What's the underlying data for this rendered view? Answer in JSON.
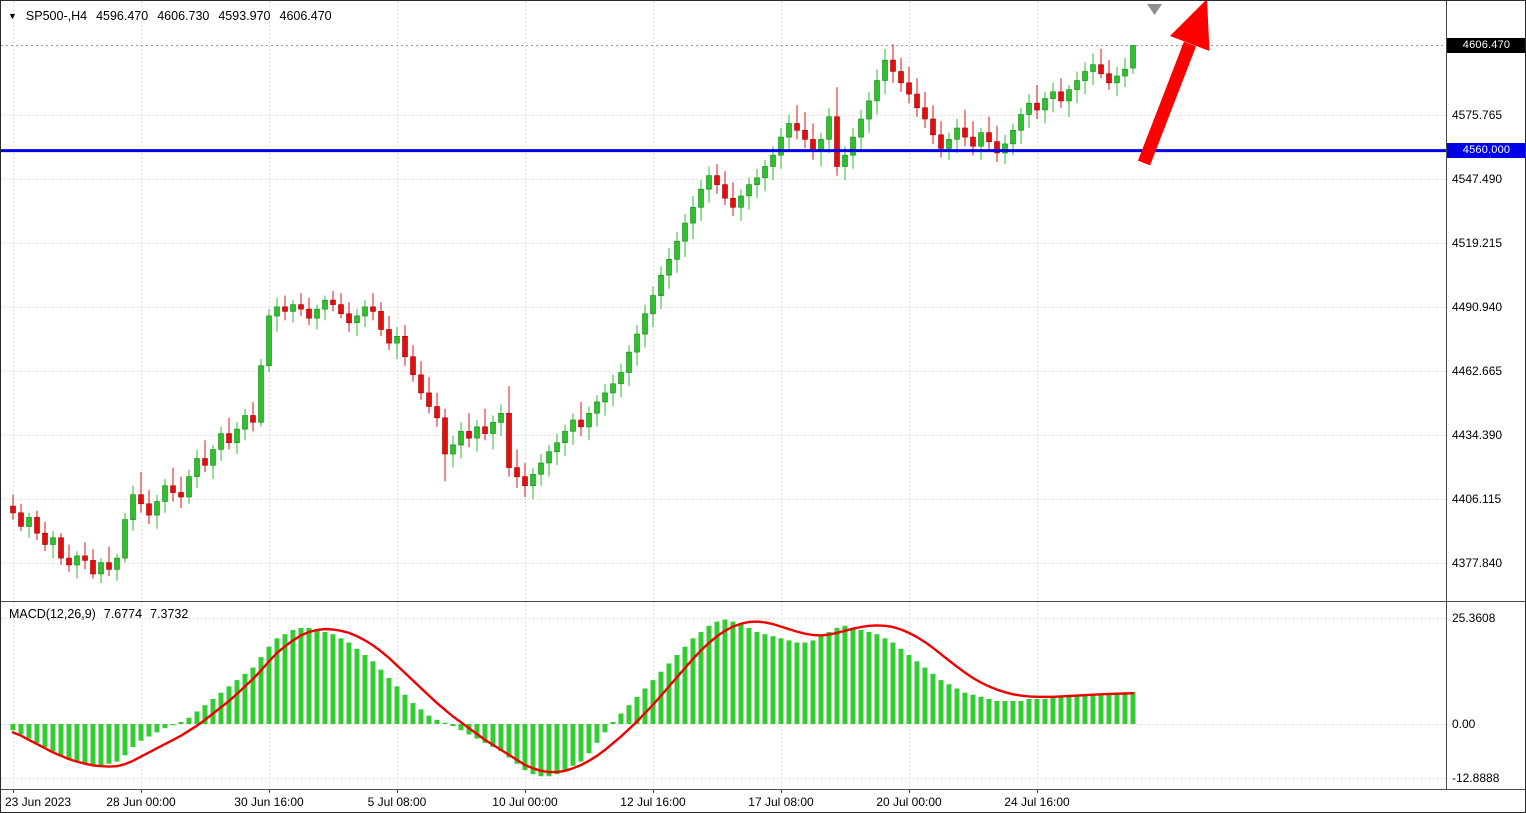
{
  "symbol_info": {
    "marker_icon": "▼",
    "symbol_tf": "SP500-,H4",
    "open": "4596.470",
    "high": "4606.730",
    "low": "4593.970",
    "close": "4606.470"
  },
  "macd_info": {
    "label": "MACD(12,26,9)",
    "value_main": "7.6774",
    "value_signal": "7.3732"
  },
  "price_tags": {
    "current": "4606.470",
    "level": "4560.000"
  },
  "colors": {
    "bull": "#2fbf2f",
    "bull_stroke": "#118811",
    "bear": "#e01010",
    "bear_stroke": "#a00000",
    "macd_hist": "#33cc33",
    "macd_signal": "#ee0000",
    "level_line": "#0000e6",
    "level_tag_bg": "#0000e6",
    "current_tag_bg": "#000000",
    "grid": "#c9c9c9",
    "arrow": "#ff0000",
    "axis_text": "#000000"
  },
  "chart_data": {
    "type": "candlestick",
    "symbol": "SP500-",
    "timeframe": "H4",
    "title": "SP500-,H4 4596.470 4606.730 4593.970 4606.470",
    "current_price": 4606.47,
    "horizontal_line": 4560.0,
    "price_gridlines": [
      4575.765,
      4547.49,
      4519.215,
      4490.94,
      4462.665,
      4434.39,
      4406.115,
      4377.84
    ],
    "time_labels": [
      {
        "bar": 0,
        "label": "23 Jun 2023"
      },
      {
        "bar": 16,
        "label": "28 Jun 00:00"
      },
      {
        "bar": 32,
        "label": "30 Jun 16:00"
      },
      {
        "bar": 48,
        "label": "5 Jul 08:00"
      },
      {
        "bar": 64,
        "label": "10 Jul 00:00"
      },
      {
        "bar": 80,
        "label": "12 Jul 16:00"
      },
      {
        "bar": 96,
        "label": "17 Jul 08:00"
      },
      {
        "bar": 112,
        "label": "20 Jul 00:00"
      },
      {
        "bar": 128,
        "label": "24 Jul 16:00"
      }
    ],
    "candles": [
      [
        4403,
        4408,
        4397,
        4400
      ],
      [
        4400,
        4404,
        4392,
        4394
      ],
      [
        4394,
        4400,
        4389,
        4398
      ],
      [
        4398,
        4401,
        4388,
        4391
      ],
      [
        4391,
        4396,
        4383,
        4386
      ],
      [
        4386,
        4392,
        4380,
        4389
      ],
      [
        4389,
        4391,
        4377,
        4380
      ],
      [
        4380,
        4386,
        4374,
        4377
      ],
      [
        4377,
        4383,
        4371,
        4381
      ],
      [
        4381,
        4387,
        4375,
        4379
      ],
      [
        4379,
        4384,
        4371,
        4373
      ],
      [
        4373,
        4380,
        4369,
        4378
      ],
      [
        4378,
        4385,
        4372,
        4375
      ],
      [
        4375,
        4382,
        4370,
        4380
      ],
      [
        4380,
        4400,
        4378,
        4397
      ],
      [
        4397,
        4412,
        4392,
        4408
      ],
      [
        4408,
        4418,
        4400,
        4404
      ],
      [
        4404,
        4410,
        4395,
        4399
      ],
      [
        4399,
        4408,
        4393,
        4405
      ],
      [
        4405,
        4415,
        4400,
        4412
      ],
      [
        4412,
        4420,
        4405,
        4409
      ],
      [
        4409,
        4416,
        4402,
        4407
      ],
      [
        4407,
        4419,
        4404,
        4416
      ],
      [
        4416,
        4428,
        4411,
        4424
      ],
      [
        4424,
        4432,
        4418,
        4421
      ],
      [
        4421,
        4430,
        4415,
        4428
      ],
      [
        4428,
        4438,
        4423,
        4435
      ],
      [
        4435,
        4442,
        4428,
        4431
      ],
      [
        4431,
        4440,
        4426,
        4437
      ],
      [
        4437,
        4446,
        4432,
        4443
      ],
      [
        4443,
        4449,
        4436,
        4440
      ],
      [
        4440,
        4468,
        4438,
        4465
      ],
      [
        4465,
        4490,
        4462,
        4487
      ],
      [
        4487,
        4495,
        4480,
        4491
      ],
      [
        4491,
        4496,
        4485,
        4489
      ],
      [
        4489,
        4494,
        4484,
        4492
      ],
      [
        4492,
        4497,
        4487,
        4490
      ],
      [
        4490,
        4495,
        4483,
        4486
      ],
      [
        4486,
        4492,
        4481,
        4490
      ],
      [
        4490,
        4496,
        4485,
        4494
      ],
      [
        4494,
        4498,
        4489,
        4492
      ],
      [
        4492,
        4497,
        4486,
        4488
      ],
      [
        4488,
        4493,
        4480,
        4484
      ],
      [
        4484,
        4490,
        4478,
        4487
      ],
      [
        4487,
        4494,
        4482,
        4491
      ],
      [
        4491,
        4497,
        4485,
        4489
      ],
      [
        4489,
        4493,
        4478,
        4481
      ],
      [
        4481,
        4487,
        4472,
        4475
      ],
      [
        4475,
        4482,
        4468,
        4478
      ],
      [
        4478,
        4483,
        4465,
        4469
      ],
      [
        4469,
        4474,
        4458,
        4461
      ],
      [
        4461,
        4467,
        4450,
        4453
      ],
      [
        4453,
        4460,
        4444,
        4447
      ],
      [
        4447,
        4453,
        4438,
        4442
      ],
      [
        4442,
        4446,
        4414,
        4426
      ],
      [
        4426,
        4434,
        4420,
        4430
      ],
      [
        4430,
        4440,
        4424,
        4436
      ],
      [
        4436,
        4444,
        4429,
        4433
      ],
      [
        4433,
        4441,
        4427,
        4438
      ],
      [
        4438,
        4446,
        4432,
        4435
      ],
      [
        4435,
        4443,
        4428,
        4440
      ],
      [
        4440,
        4448,
        4434,
        4444
      ],
      [
        4444,
        4456,
        4416,
        4420
      ],
      [
        4420,
        4428,
        4411,
        4416
      ],
      [
        4416,
        4422,
        4407,
        4412
      ],
      [
        4412,
        4420,
        4406,
        4417
      ],
      [
        4417,
        4426,
        4412,
        4422
      ],
      [
        4422,
        4430,
        4416,
        4427
      ],
      [
        4427,
        4435,
        4421,
        4431
      ],
      [
        4431,
        4439,
        4425,
        4436
      ],
      [
        4436,
        4444,
        4430,
        4441
      ],
      [
        4441,
        4449,
        4434,
        4438
      ],
      [
        4438,
        4447,
        4432,
        4444
      ],
      [
        4444,
        4452,
        4438,
        4449
      ],
      [
        4449,
        4457,
        4443,
        4453
      ],
      [
        4453,
        4461,
        4447,
        4457
      ],
      [
        4457,
        4466,
        4451,
        4462
      ],
      [
        4462,
        4474,
        4456,
        4471
      ],
      [
        4471,
        4483,
        4465,
        4479
      ],
      [
        4479,
        4492,
        4473,
        4488
      ],
      [
        4488,
        4500,
        4482,
        4496
      ],
      [
        4496,
        4509,
        4490,
        4505
      ],
      [
        4505,
        4517,
        4499,
        4512
      ],
      [
        4512,
        4524,
        4506,
        4520
      ],
      [
        4520,
        4532,
        4513,
        4528
      ],
      [
        4528,
        4540,
        4521,
        4535
      ],
      [
        4535,
        4547,
        4529,
        4543
      ],
      [
        4543,
        4553,
        4537,
        4549
      ],
      [
        4549,
        4554,
        4541,
        4545
      ],
      [
        4545,
        4551,
        4536,
        4539
      ],
      [
        4539,
        4546,
        4531,
        4535
      ],
      [
        4535,
        4543,
        4529,
        4540
      ],
      [
        4540,
        4548,
        4534,
        4545
      ],
      [
        4545,
        4552,
        4539,
        4548
      ],
      [
        4548,
        4556,
        4542,
        4553
      ],
      [
        4553,
        4562,
        4547,
        4558
      ],
      [
        4558,
        4570,
        4552,
        4566
      ],
      [
        4566,
        4576,
        4560,
        4572
      ],
      [
        4572,
        4580,
        4565,
        4569
      ],
      [
        4569,
        4577,
        4561,
        4565
      ],
      [
        4565,
        4572,
        4556,
        4560
      ],
      [
        4560,
        4568,
        4553,
        4565
      ],
      [
        4565,
        4579,
        4559,
        4575
      ],
      [
        4575,
        4588,
        4549,
        4553
      ],
      [
        4553,
        4562,
        4547,
        4558
      ],
      [
        4558,
        4570,
        4552,
        4566
      ],
      [
        4566,
        4578,
        4560,
        4574
      ],
      [
        4574,
        4586,
        4568,
        4582
      ],
      [
        4582,
        4596,
        4576,
        4591
      ],
      [
        4591,
        4605,
        4585,
        4600
      ],
      [
        4600,
        4607,
        4590,
        4595
      ],
      [
        4595,
        4601,
        4586,
        4590
      ],
      [
        4590,
        4597,
        4581,
        4585
      ],
      [
        4585,
        4592,
        4575,
        4579
      ],
      [
        4579,
        4586,
        4570,
        4574
      ],
      [
        4574,
        4580,
        4563,
        4567
      ],
      [
        4567,
        4573,
        4557,
        4561
      ],
      [
        4561,
        4568,
        4556,
        4565
      ],
      [
        4565,
        4574,
        4559,
        4570
      ],
      [
        4570,
        4578,
        4562,
        4566
      ],
      [
        4566,
        4573,
        4558,
        4562
      ],
      [
        4562,
        4570,
        4556,
        4568
      ],
      [
        4568,
        4575,
        4560,
        4564
      ],
      [
        4564,
        4571,
        4555,
        4559
      ],
      [
        4559,
        4567,
        4554,
        4563
      ],
      [
        4563,
        4572,
        4558,
        4569
      ],
      [
        4569,
        4579,
        4563,
        4576
      ],
      [
        4576,
        4585,
        4570,
        4581
      ],
      [
        4581,
        4589,
        4574,
        4578
      ],
      [
        4578,
        4586,
        4572,
        4583
      ],
      [
        4583,
        4590,
        4577,
        4586
      ],
      [
        4586,
        4592,
        4579,
        4582
      ],
      [
        4582,
        4589,
        4575,
        4587
      ],
      [
        4587,
        4595,
        4581,
        4591
      ],
      [
        4591,
        4599,
        4585,
        4595
      ],
      [
        4595,
        4603,
        4589,
        4598
      ],
      [
        4598,
        4605,
        4592,
        4594
      ],
      [
        4594,
        4600,
        4587,
        4590
      ],
      [
        4590,
        4597,
        4584,
        4593
      ],
      [
        4593,
        4601,
        4588,
        4596
      ],
      [
        4596.47,
        4606.73,
        4593.97,
        4606.47
      ]
    ],
    "macd": {
      "params": "12,26,9",
      "main_value": 7.6774,
      "signal_value": 7.3732,
      "axis_ticks": [
        {
          "v": 25.3608,
          "label": "25.3608"
        },
        {
          "v": 0,
          "label": "0.00"
        },
        {
          "v": -12.8888,
          "label": "-12.8888"
        }
      ],
      "histogram": [
        -1.5,
        -2.5,
        -3.5,
        -4.5,
        -5.5,
        -6.5,
        -7.5,
        -8.5,
        -9,
        -9.5,
        -10,
        -10,
        -9.5,
        -9,
        -7.5,
        -5.5,
        -4,
        -3,
        -2,
        -1,
        -0.3,
        0.5,
        1.5,
        3,
        4.5,
        6,
        7.5,
        9,
        10.5,
        12,
        13.5,
        16,
        18.5,
        20.5,
        21.5,
        22.5,
        23,
        23,
        22.5,
        22,
        21.5,
        20.5,
        19.5,
        18,
        16.5,
        15,
        13,
        11,
        9,
        7,
        5,
        3.5,
        2,
        1,
        0.3,
        -0.5,
        -1.5,
        -2.5,
        -3.5,
        -4.5,
        -5.5,
        -6.5,
        -8,
        -9.5,
        -11,
        -12,
        -12.5,
        -12.5,
        -12,
        -11,
        -10,
        -9,
        -7,
        -4.5,
        -2,
        0.5,
        2.5,
        4.5,
        6.5,
        8.5,
        10.5,
        12.5,
        14.5,
        16.5,
        18.5,
        20.5,
        22,
        23.5,
        24.5,
        25,
        24.5,
        24,
        23,
        22,
        21.5,
        21,
        20.5,
        20,
        19.5,
        19.5,
        20,
        21,
        22,
        23,
        23.5,
        23,
        22.5,
        22,
        21.5,
        20.5,
        19.5,
        18,
        16.5,
        15,
        13.5,
        12,
        10.5,
        9.5,
        8.5,
        7.5,
        7,
        6.5,
        6,
        5.5,
        5.5,
        5.5,
        5.5,
        6,
        6,
        6,
        6.5,
        6.5,
        6.5,
        7,
        7,
        7,
        7,
        7,
        7.2,
        7.4,
        7.677
      ],
      "signal": [
        -2,
        -2.8,
        -3.8,
        -4.8,
        -5.8,
        -6.8,
        -7.6,
        -8.4,
        -9,
        -9.5,
        -9.9,
        -10.1,
        -10.2,
        -10.1,
        -9.6,
        -8.8,
        -7.8,
        -6.8,
        -5.8,
        -4.8,
        -3.8,
        -2.8,
        -1.6,
        -0.4,
        1,
        2.5,
        4,
        5.5,
        7.2,
        9,
        10.8,
        12.8,
        15,
        17,
        18.6,
        20,
        21.2,
        22,
        22.5,
        22.7,
        22.6,
        22.3,
        21.8,
        21,
        20,
        18.8,
        17.4,
        15.8,
        14,
        12.2,
        10.4,
        8.6,
        6.8,
        5,
        3.4,
        1.8,
        0.4,
        -1,
        -2.4,
        -3.8,
        -5,
        -6.2,
        -7.4,
        -8.6,
        -9.8,
        -10.6,
        -11.2,
        -11.5,
        -11.5,
        -11.2,
        -10.6,
        -9.8,
        -8.8,
        -7.6,
        -6.2,
        -4.6,
        -3,
        -1.2,
        0.6,
        2.6,
        4.6,
        6.8,
        9,
        11.2,
        13.4,
        15.6,
        17.6,
        19.4,
        21,
        22.3,
        23.3,
        24,
        24.4,
        24.5,
        24.3,
        23.9,
        23.3,
        22.7,
        22.1,
        21.6,
        21.3,
        21.2,
        21.4,
        21.8,
        22.3,
        22.8,
        23.2,
        23.5,
        23.6,
        23.5,
        23.2,
        22.6,
        21.8,
        20.8,
        19.6,
        18.2,
        16.7,
        15.2,
        13.7,
        12.3,
        11,
        9.9,
        9,
        8.2,
        7.6,
        7.1,
        6.8,
        6.6,
        6.5,
        6.5,
        6.5,
        6.6,
        6.7,
        6.8,
        6.9,
        7,
        7.1,
        7.2,
        7.25,
        7.3,
        7.3732
      ]
    }
  }
}
